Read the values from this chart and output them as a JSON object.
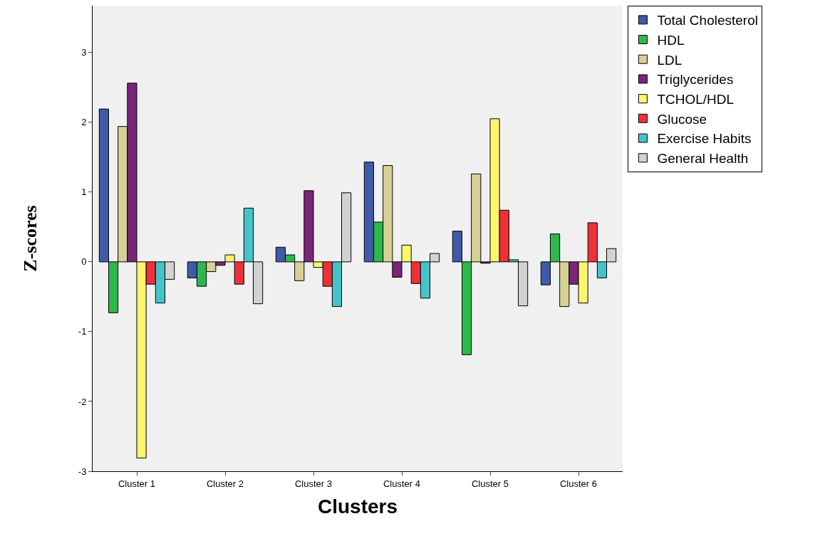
{
  "chart_data": {
    "type": "bar",
    "xlabel": "Clusters",
    "ylabel": "Z-scores",
    "categories": [
      "Cluster 1",
      "Cluster 2",
      "Cluster 3",
      "Cluster 4",
      "Cluster 5",
      "Cluster 6"
    ],
    "series": [
      {
        "name": "Total Cholesterol",
        "color": "#3f5aa8",
        "values": [
          2.19,
          -0.23,
          0.21,
          1.43,
          0.44,
          -0.33
        ]
      },
      {
        "name": "HDL",
        "color": "#2db84b",
        "values": [
          -0.73,
          -0.35,
          0.1,
          0.57,
          -1.33,
          0.4
        ]
      },
      {
        "name": "LDL",
        "color": "#d6d095",
        "values": [
          1.94,
          -0.14,
          -0.27,
          1.38,
          1.26,
          -0.64
        ]
      },
      {
        "name": "Triglycerides",
        "color": "#782778",
        "values": [
          2.56,
          -0.05,
          1.02,
          -0.22,
          -0.02,
          -0.32
        ]
      },
      {
        "name": "TCHOL/HDL",
        "color": "#fbf56e",
        "values": [
          -2.81,
          0.1,
          -0.08,
          0.24,
          2.05,
          -0.59
        ]
      },
      {
        "name": "Glucose",
        "color": "#ee3038",
        "values": [
          -0.32,
          -0.32,
          -0.35,
          -0.31,
          0.74,
          0.56
        ]
      },
      {
        "name": "Exercise Habits",
        "color": "#46c3c8",
        "values": [
          -0.59,
          0.77,
          -0.64,
          -0.52,
          0.03,
          -0.23
        ]
      },
      {
        "name": "General Health",
        "color": "#d2d2d2",
        "values": [
          -0.25,
          -0.6,
          0.99,
          0.12,
          -0.63,
          0.19
        ]
      }
    ],
    "ylim": [
      -3,
      3.67
    ],
    "yticks": [
      -3,
      -2,
      -1,
      0,
      1,
      2,
      3
    ],
    "grid": false,
    "legend": "top right"
  }
}
